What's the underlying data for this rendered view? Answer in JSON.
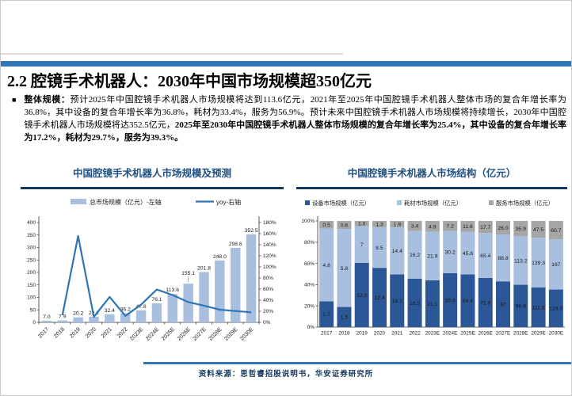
{
  "slide": {
    "title": "2.2 腔镜手术机器人：2030年中国市场规模超350亿元",
    "bullet": {
      "marker": "■",
      "lead": "整体规模：",
      "normal": "预计2025年中国腔镜手术机器人市场规模将达到113.6亿元，2021年至2025年中国腔镜手术机器人整体市场的复合年增长率为36.8%，其中设备的复合年增长率为36.8%，耗材为33.4%，服务为56.9%。预计未来中国腔镜手术机器人市场规模将持续增长，2030年中国腔镜手术机器人市场规模将达352.5亿元，",
      "bold": "2025年至2030年中国腔镜手术机器人整体市场规模的复合年增长率为25.4%，其中设备的复合年增长率为17.2%，耗材为29.7%，服务为39.3%。"
    },
    "footer": "资料来源：思哲睿招股说明书，华安证券研究所"
  },
  "colors": {
    "accent_bar": "#2e75b6",
    "panel_title": "#1f5080",
    "title_rule": "#17375e",
    "bar_light_blue": "#a9bfe0",
    "yoy_line_blue": "#2e75b6",
    "stack_device_blue": "#2b5797",
    "stack_consumable_blue": "#a9bfe0",
    "stack_service_gray": "#a6a6a6"
  },
  "chart_data": [
    {
      "type": "bar",
      "combo": "bar+line",
      "title": "中国腔镜手术机器人市场规模及预测",
      "categories": [
        "2017",
        "2018",
        "2019",
        "2020",
        "2021",
        "2022",
        "2023E",
        "2024E",
        "2025E",
        "2026E",
        "2027E",
        "2028E",
        "2029E",
        "2030E"
      ],
      "series": [
        {
          "name": "总市场规模（亿元）-左轴",
          "type": "bar",
          "axis": "left",
          "color": "#a9bfe0",
          "values": [
            7.0,
            7.9,
            20.2,
            22.2,
            32.4,
            36.2,
            47.8,
            76.1,
            113.6,
            155.1,
            201.8,
            248.0,
            298.6,
            352.5
          ],
          "labels": [
            "7.0",
            "7.9",
            "20.2",
            "22.2",
            "32.4",
            "36.2",
            "47.8",
            "76.1",
            "113.6",
            "155.1",
            "201.8",
            "248.0",
            "298.6",
            "352.5"
          ]
        },
        {
          "name": "yoy-右轴",
          "type": "line",
          "axis": "right",
          "color": "#2e75b6",
          "values": [
            null,
            12.9,
            155.7,
            9.9,
            45.9,
            11.7,
            32.0,
            59.2,
            49.3,
            36.5,
            30.1,
            22.9,
            20.4,
            18.1
          ]
        }
      ],
      "left_axis": {
        "min": 0,
        "max": 400,
        "step": 50
      },
      "right_axis": {
        "min": 0,
        "max": 180,
        "step": 20,
        "suffix": "%"
      },
      "grid": false,
      "legend_position": "top",
      "callout_index": 9
    },
    {
      "type": "bar",
      "variant": "stacked-100pct",
      "title": "中国腔镜手术机器人市场结构（亿元）",
      "categories": [
        "2017",
        "2018",
        "2019",
        "2020",
        "2021",
        "2022",
        "2023E",
        "2024E",
        "2025E",
        "2026E",
        "2027E",
        "2028E",
        "2029E",
        "2030E"
      ],
      "series": [
        {
          "name": "设备市场规模（亿元）",
          "color": "#2b5797",
          "label_color": "#ffffff",
          "values": [
            1.7,
            1.5,
            12.3,
            12.4,
            16.1,
            16.5,
            21.1,
            38.6,
            56.4,
            71.9,
            87,
            98.9,
            111.8,
            124.8
          ],
          "labels": [
            "1.7",
            "1.5",
            "12.3",
            "12.4",
            "16.1",
            "16.5",
            "21.1",
            "38.6",
            "56.4",
            "71.9",
            "87",
            "98.9",
            "111.8",
            "124.8"
          ]
        },
        {
          "name": "耗材市场规模（亿元）",
          "color": "#a9bfe0",
          "label_color": "#1a1a1a",
          "values": [
            4.8,
            5.8,
            7,
            8.5,
            14.4,
            16.2,
            21.9,
            30.2,
            45.6,
            65.4,
            88.8,
            113.2,
            139.3,
            167
          ],
          "labels": [
            "4.8",
            "5.8",
            "7",
            "8.5",
            "14.4",
            "16.2",
            "21.9",
            "30.2",
            "45.6",
            "65.4",
            "88.8",
            "113.2",
            "139.3",
            "167"
          ]
        },
        {
          "name": "服务市场规模（亿元）",
          "color": "#a6a6a6",
          "label_color": "#1a1a1a",
          "values": [
            0.5,
            0.6,
            1.0,
            1.3,
            1.9,
            3.4,
            4.9,
            7.2,
            11.6,
            17.7,
            26.0,
            35.9,
            47.5,
            60.7
          ],
          "labels": [
            "0.5",
            "0.6",
            "1.0",
            "1.3",
            "1.9",
            "3.4",
            "4.9",
            "7.2",
            "11.6",
            "17.7",
            "26.0",
            "35.9",
            "47.5",
            "60.7"
          ]
        }
      ],
      "y_axis": {
        "min": 0,
        "max": 100,
        "step": 20,
        "suffix": "%"
      },
      "grid": false,
      "legend_position": "top"
    }
  ]
}
